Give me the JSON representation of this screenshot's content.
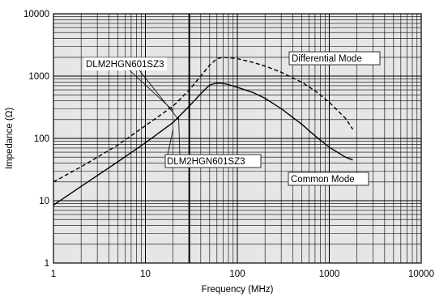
{
  "chart_data": {
    "type": "line",
    "xlabel": "Frequency (MHz)",
    "ylabel": "Impedance (Ω)",
    "x_scale": "log",
    "y_scale": "log",
    "xlim": [
      1,
      10000
    ],
    "ylim": [
      1,
      10000
    ],
    "x_ticks": [
      "1",
      "10",
      "100",
      "1000",
      "10000"
    ],
    "y_ticks": [
      "1",
      "10",
      "100",
      "1000",
      "10000"
    ],
    "grid": true,
    "plot_background": "#e6e6e6",
    "marker_line_x": 30,
    "series": [
      {
        "name": "Differential Mode",
        "style": "dashed",
        "x": [
          1,
          2,
          5,
          10,
          20,
          30,
          40,
          50,
          60,
          70,
          80,
          100,
          150,
          200,
          300,
          500,
          700,
          1000,
          1500,
          1800
        ],
        "y": [
          20,
          35,
          78,
          160,
          330,
          600,
          1000,
          1500,
          1900,
          2000,
          1980,
          1900,
          1650,
          1450,
          1150,
          800,
          580,
          380,
          210,
          140
        ]
      },
      {
        "name": "Common Mode",
        "style": "solid",
        "x": [
          1,
          2,
          5,
          10,
          20,
          30,
          40,
          50,
          60,
          70,
          80,
          100,
          150,
          200,
          300,
          500,
          700,
          1000,
          1500,
          1800
        ],
        "y": [
          8.5,
          17,
          42,
          85,
          180,
          330,
          520,
          720,
          770,
          760,
          730,
          660,
          540,
          440,
          300,
          170,
          110,
          72,
          50,
          45
        ]
      }
    ],
    "annotations": [
      {
        "id": "part-upper",
        "text": "DLM2HGN601SZ3"
      },
      {
        "id": "part-lower",
        "text": "DLM2HGN601SZ3"
      },
      {
        "id": "diff-label",
        "text": "Differential Mode"
      },
      {
        "id": "cm-label",
        "text": "Common Mode"
      }
    ]
  }
}
